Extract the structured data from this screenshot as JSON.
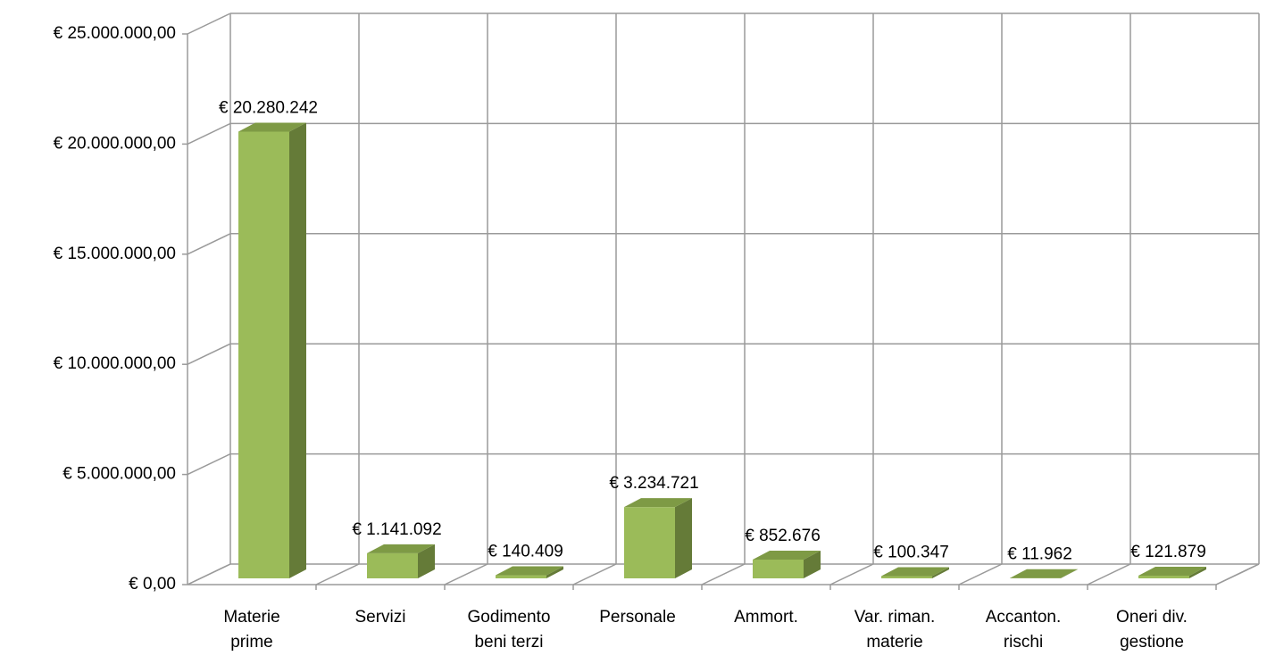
{
  "chart_data": {
    "type": "bar3d",
    "categories": [
      [
        "Materie",
        "prime"
      ],
      [
        "Servizi"
      ],
      [
        "Godimento",
        "beni terzi"
      ],
      [
        "Personale"
      ],
      [
        "Ammort."
      ],
      [
        "Var. riman.",
        "materie"
      ],
      [
        "Accanton.",
        "rischi"
      ],
      [
        "Oneri div.",
        "gestione"
      ]
    ],
    "values": [
      20280242,
      1141092,
      140409,
      3234721,
      852676,
      100347,
      11962,
      121879
    ],
    "value_labels": [
      "€ 20.280.242",
      "€ 1.141.092",
      "€ 140.409",
      "€ 3.234.721",
      "€ 852.676",
      "€ 100.347",
      "€ 11.962",
      "€ 121.879"
    ],
    "color": "#9bbb59",
    "ylim": [
      0,
      25000000
    ],
    "yticks": [
      {
        "value": 0,
        "label": "€ 0,00"
      },
      {
        "value": 5000000,
        "label": "€ 5.000.000,00"
      },
      {
        "value": 10000000,
        "label": "€ 10.000.000,00"
      },
      {
        "value": 15000000,
        "label": "€ 15.000.000,00"
      },
      {
        "value": 20000000,
        "label": "€ 20.000.000,00"
      },
      {
        "value": 25000000,
        "label": "€ 25.000.000,00"
      }
    ],
    "grid": true
  }
}
